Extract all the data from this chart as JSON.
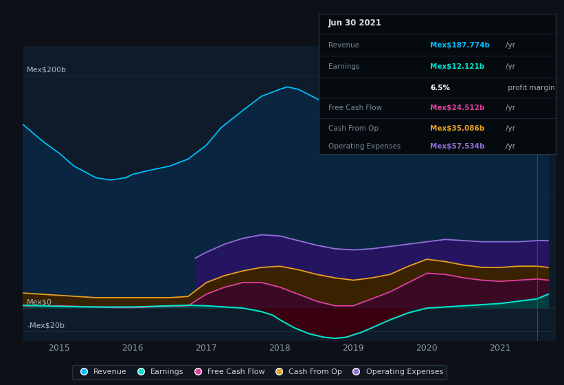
{
  "bg_color": "#0d1117",
  "plot_bg_color": "#0d1b2a",
  "ylim": [
    -28,
    225
  ],
  "xlim_start": 2014.5,
  "xlim_end": 2021.75,
  "xticks": [
    2015,
    2016,
    2017,
    2018,
    2019,
    2020,
    2021
  ],
  "series": {
    "revenue": {
      "color": "#00bfff",
      "fill_color": "#0a2d4a",
      "x": [
        2014.5,
        2014.65,
        2014.8,
        2015.0,
        2015.2,
        2015.5,
        2015.7,
        2015.9,
        2016.0,
        2016.2,
        2016.5,
        2016.75,
        2017.0,
        2017.2,
        2017.5,
        2017.75,
        2018.0,
        2018.1,
        2018.25,
        2018.5,
        2018.75,
        2019.0,
        2019.25,
        2019.5,
        2019.75,
        2020.0,
        2020.25,
        2020.5,
        2020.75,
        2021.0,
        2021.25,
        2021.5,
        2021.65
      ],
      "y": [
        158,
        150,
        142,
        133,
        122,
        112,
        110,
        112,
        115,
        118,
        122,
        128,
        140,
        155,
        170,
        182,
        188,
        190,
        188,
        180,
        172,
        165,
        162,
        163,
        167,
        172,
        178,
        182,
        184,
        183,
        180,
        182,
        188
      ]
    },
    "operating_expenses": {
      "color": "#9370db",
      "fill_color": "#2d1a5a",
      "x": [
        2016.85,
        2017.0,
        2017.25,
        2017.5,
        2017.75,
        2018.0,
        2018.25,
        2018.5,
        2018.75,
        2019.0,
        2019.25,
        2019.5,
        2019.75,
        2020.0,
        2020.25,
        2020.5,
        2020.75,
        2021.0,
        2021.25,
        2021.5,
        2021.65
      ],
      "y": [
        43,
        48,
        55,
        60,
        63,
        62,
        58,
        54,
        51,
        50,
        51,
        53,
        55,
        57,
        59,
        58,
        57,
        57,
        57,
        58,
        58
      ]
    },
    "cash_from_op": {
      "color": "#e8a020",
      "x": [
        2014.5,
        2014.75,
        2015.0,
        2015.25,
        2015.5,
        2015.75,
        2016.0,
        2016.25,
        2016.5,
        2016.75,
        2017.0,
        2017.25,
        2017.5,
        2017.75,
        2018.0,
        2018.25,
        2018.5,
        2018.75,
        2019.0,
        2019.25,
        2019.5,
        2019.75,
        2020.0,
        2020.25,
        2020.5,
        2020.75,
        2021.0,
        2021.25,
        2021.5,
        2021.65
      ],
      "y": [
        13,
        12,
        11,
        10,
        9,
        9,
        9,
        9,
        9,
        10,
        22,
        28,
        32,
        35,
        36,
        33,
        29,
        26,
        24,
        26,
        29,
        36,
        42,
        40,
        37,
        35,
        35,
        36,
        36,
        35
      ]
    },
    "free_cash_flow": {
      "color": "#e040a0",
      "x": [
        2014.5,
        2014.75,
        2015.0,
        2015.25,
        2015.5,
        2015.75,
        2016.0,
        2016.25,
        2016.5,
        2016.75,
        2017.0,
        2017.25,
        2017.5,
        2017.75,
        2018.0,
        2018.25,
        2018.5,
        2018.75,
        2019.0,
        2019.25,
        2019.5,
        2019.75,
        2020.0,
        2020.25,
        2020.5,
        2020.75,
        2021.0,
        2021.25,
        2021.5,
        2021.65
      ],
      "y": [
        2,
        2,
        2,
        1.5,
        1,
        0.5,
        0.5,
        1,
        1.5,
        2,
        12,
        18,
        22,
        22,
        18,
        12,
        6,
        2,
        2,
        8,
        14,
        22,
        30,
        29,
        26,
        24,
        23,
        24,
        25,
        24
      ]
    },
    "earnings": {
      "color": "#00e5cc",
      "x": [
        2014.5,
        2014.75,
        2015.0,
        2015.25,
        2015.5,
        2015.75,
        2016.0,
        2016.25,
        2016.5,
        2016.75,
        2017.0,
        2017.25,
        2017.5,
        2017.75,
        2017.9,
        2018.0,
        2018.2,
        2018.4,
        2018.6,
        2018.75,
        2018.9,
        2019.0,
        2019.1,
        2019.25,
        2019.5,
        2019.75,
        2020.0,
        2020.25,
        2020.5,
        2020.75,
        2021.0,
        2021.25,
        2021.5,
        2021.65
      ],
      "y": [
        2.5,
        2,
        1.5,
        1.2,
        1,
        1,
        1,
        1.5,
        2,
        2.5,
        2,
        1,
        0,
        -3,
        -6,
        -10,
        -17,
        -22,
        -25,
        -26,
        -25,
        -23,
        -21,
        -17,
        -10,
        -4,
        0,
        1,
        2,
        3,
        4,
        6,
        8,
        12
      ]
    }
  },
  "legend_items": [
    {
      "label": "Revenue",
      "color": "#00bfff"
    },
    {
      "label": "Earnings",
      "color": "#00e5cc"
    },
    {
      "label": "Free Cash Flow",
      "color": "#e040a0"
    },
    {
      "label": "Cash From Op",
      "color": "#e8a020"
    },
    {
      "label": "Operating Expenses",
      "color": "#9370db"
    }
  ],
  "vertical_line_x": 2021.5,
  "infobox": {
    "title": "Jun 30 2021",
    "rows": [
      {
        "label": "Revenue",
        "value": "Mex$187.774b",
        "color": "#00bfff"
      },
      {
        "label": "Earnings",
        "value": "Mex$12.121b",
        "color": "#00e5cc"
      },
      {
        "label": "",
        "value": "6.5% profit margin",
        "color": "mixed"
      },
      {
        "label": "Free Cash Flow",
        "value": "Mex$24.512b",
        "color": "#e040a0"
      },
      {
        "label": "Cash From Op",
        "value": "Mex$35.086b",
        "color": "#e8a020"
      },
      {
        "label": "Operating Expenses",
        "value": "Mex$57.534b",
        "color": "#9370db"
      }
    ]
  }
}
